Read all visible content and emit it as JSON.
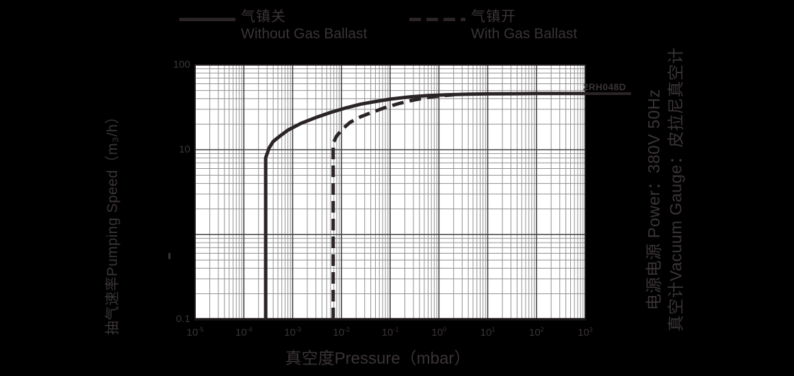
{
  "colors": {
    "background": "#000000",
    "plot_bg": "#ffffff",
    "text": "#3a3436",
    "curve": "#2b2426",
    "grid_major": "#3f3f3f",
    "grid_minor": "#8f8f8f"
  },
  "legend": [
    {
      "style": "solid",
      "label_cn": "气镇关",
      "label_en": "Without Gas Ballast"
    },
    {
      "style": "dashed",
      "label_cn": "气镇开",
      "label_en": "With Gas Ballast"
    }
  ],
  "curve_label": "2RH048D",
  "x_axis": {
    "title": "真空度Pressure（mbar）",
    "ticks": [
      {
        "base": "10",
        "sup": "-5",
        "value": 1e-05
      },
      {
        "base": "10",
        "sup": "-4",
        "value": 0.0001
      },
      {
        "base": "10",
        "sup": "-3",
        "value": 0.001
      },
      {
        "base": "10",
        "sup": "-2",
        "value": 0.01
      },
      {
        "base": "10",
        "sup": "-1",
        "value": 0.1
      },
      {
        "base": "10",
        "sup": "0",
        "value": 1
      },
      {
        "base": "10",
        "sup": "1",
        "value": 10
      },
      {
        "base": "10",
        "sup": "2",
        "value": 100
      },
      {
        "base": "10",
        "sup": "3",
        "value": 1000
      }
    ]
  },
  "y_axis": {
    "title": "抽气速率Pumping Speed（m₃/h）",
    "ticks": [
      {
        "label": "100",
        "value": 100
      },
      {
        "label": "10",
        "value": 10
      },
      {
        "label": "0.1",
        "value": 0.1
      }
    ]
  },
  "side_notes": {
    "power": "电源电源  Power：380V 50Hz",
    "gauge": "真空计Vacuum Gauge：皮拉尼真空计"
  },
  "chart_data": {
    "type": "line",
    "title": "",
    "model": "2RH048D",
    "xlabel": "真空度Pressure（mbar）",
    "ylabel": "抽气速率Pumping Speed（m₃/h）",
    "x_scale": "log",
    "y_scale": "log",
    "xlim": [
      1e-05,
      1000
    ],
    "ylim": [
      0.1,
      100
    ],
    "grid": true,
    "legend_position": "top",
    "series": [
      {
        "name": "Without Gas Ballast (气镇关)",
        "style": "solid",
        "points": [
          [
            0.00028,
            0.1
          ],
          [
            0.00028,
            8
          ],
          [
            0.00033,
            10.5
          ],
          [
            0.0004,
            12.5
          ],
          [
            0.00055,
            14.5
          ],
          [
            0.0008,
            17
          ],
          [
            0.0015,
            20.5
          ],
          [
            0.003,
            24
          ],
          [
            0.006,
            27.5
          ],
          [
            0.012,
            31
          ],
          [
            0.025,
            34.5
          ],
          [
            0.05,
            37
          ],
          [
            0.1,
            39.5
          ],
          [
            0.25,
            42
          ],
          [
            0.6,
            43.5
          ],
          [
            1.5,
            44.5
          ],
          [
            4,
            45.2
          ],
          [
            10,
            45.6
          ],
          [
            30,
            45.8
          ],
          [
            100,
            46
          ],
          [
            300,
            46
          ],
          [
            1000,
            46
          ]
        ]
      },
      {
        "name": "With Gas Ballast (气镇开)",
        "style": "dashed",
        "points": [
          [
            0.0068,
            0.1
          ],
          [
            0.0068,
            12
          ],
          [
            0.008,
            14.5
          ],
          [
            0.0105,
            17.5
          ],
          [
            0.015,
            21
          ],
          [
            0.025,
            24.5
          ],
          [
            0.045,
            28
          ],
          [
            0.08,
            31.5
          ],
          [
            0.15,
            35
          ],
          [
            0.3,
            38.5
          ],
          [
            0.6,
            41.5
          ],
          [
            1.2,
            43.5
          ],
          [
            2,
            44.3
          ]
        ]
      }
    ]
  }
}
